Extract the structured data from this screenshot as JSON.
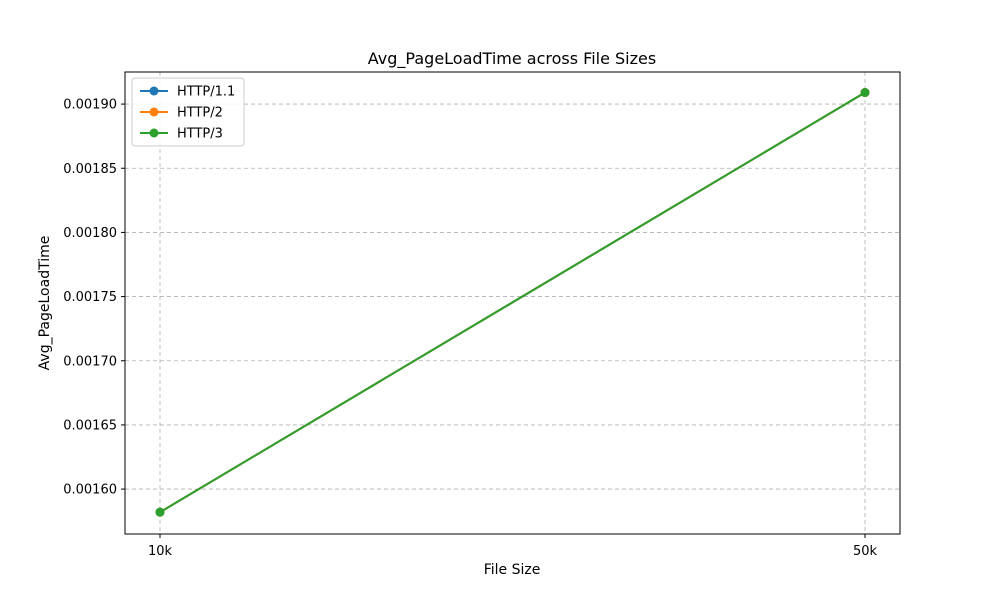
{
  "chart_data": {
    "type": "line",
    "title": "Avg_PageLoadTime across File Sizes",
    "xlabel": "File Size",
    "ylabel": "Avg_PageLoadTime",
    "categories": [
      "10k",
      "50k"
    ],
    "series": [
      {
        "name": "HTTP/1.1",
        "color": "#1f77b4",
        "values": [
          0.001582,
          0.001909
        ]
      },
      {
        "name": "HTTP/2",
        "color": "#ff7f0e",
        "values": [
          0.001582,
          0.001909
        ]
      },
      {
        "name": "HTTP/3",
        "color": "#2ca02c",
        "values": [
          0.001582,
          0.001909
        ]
      }
    ],
    "ylim": [
      0.001565,
      0.001925
    ],
    "yticks": [
      "0.00160",
      "0.00165",
      "0.00170",
      "0.00175",
      "0.00180",
      "0.00185",
      "0.00190"
    ],
    "grid": true,
    "legend_position": "top-left"
  }
}
